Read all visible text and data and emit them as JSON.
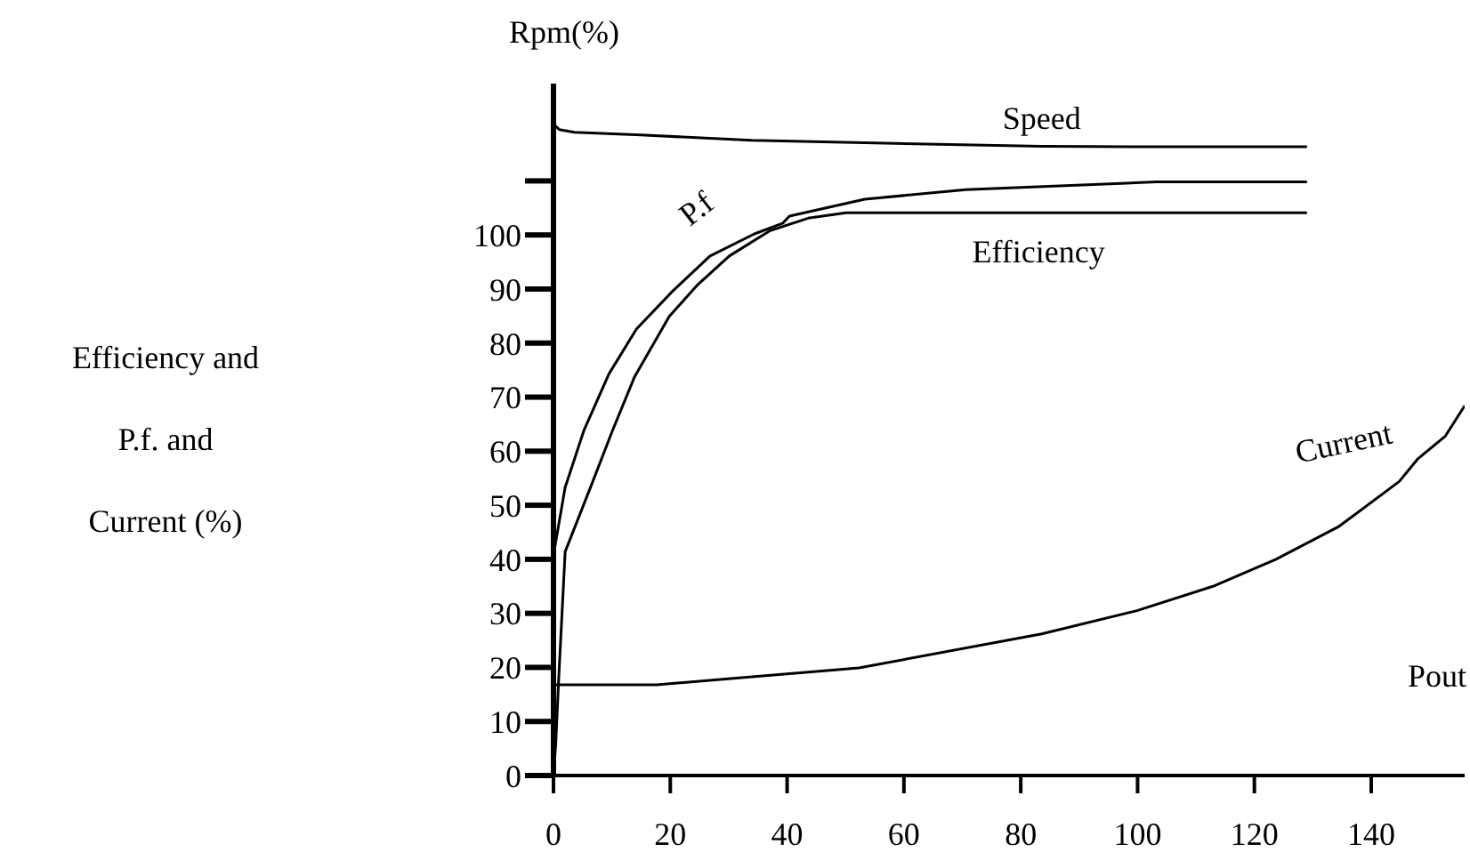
{
  "chart_data": {
    "type": "line",
    "xlabel": "Pout",
    "ylabel": "Efficiency and\nP.f. and\nCurrent (%)",
    "annotations": [
      "Rpm(%)"
    ],
    "xlim": [
      0,
      156
    ],
    "xticks": [
      0,
      20,
      40,
      60,
      80,
      100,
      120,
      140
    ],
    "ylim": [
      0,
      128
    ],
    "yticks": [
      0,
      10,
      20,
      30,
      40,
      50,
      60,
      70,
      80,
      90,
      100,
      {
        "value": 110,
        "label": null
      }
    ],
    "grid": false,
    "legend": false,
    "marker": "none",
    "line_style": "solid",
    "series": [
      {
        "name": "Speed",
        "color": "#000000",
        "x": [
          0,
          1,
          3.6,
          15,
          33.9,
          55,
          83.6,
          105,
          129
        ],
        "values": [
          120.5,
          119.5,
          119,
          118.5,
          117.5,
          117,
          116.4,
          116.3,
          116.3
        ]
      },
      {
        "name": "P.f",
        "color": "#000000",
        "x": [
          0,
          0.1,
          0.1,
          2,
          5.2,
          9.5,
          14.2,
          20.4,
          26.8,
          34.4,
          39.3,
          40.4,
          53.3,
          70.6,
          103.2,
          129
        ],
        "values": [
          0,
          18,
          41.4,
          53.3,
          63.8,
          74.3,
          82.6,
          89.6,
          96.1,
          100.2,
          102.2,
          103.5,
          106.6,
          108.4,
          109.8,
          109.8
        ]
      },
      {
        "name": "Efficiency",
        "color": "#000000",
        "x": [
          0,
          0.4,
          0.9,
          2,
          6.3,
          10.1,
          13.9,
          19.8,
          24.7,
          30.1,
          37.1,
          43.6,
          50.1,
          80,
          129
        ],
        "values": [
          0,
          6,
          18,
          41.4,
          53.2,
          63.8,
          73.8,
          84.9,
          90.8,
          96.1,
          100.8,
          103.1,
          104.1,
          104.1,
          104.1
        ]
      },
      {
        "name": "Current",
        "color": "#000000",
        "x": [
          0,
          0.2,
          17.7,
          52.3,
          83.6,
          99.9,
          112.9,
          123.7,
          134.5,
          144.8,
          148,
          152.7,
          156
        ],
        "values": [
          0,
          16.8,
          16.8,
          19.9,
          26.2,
          30.5,
          35,
          40,
          46.1,
          54.4,
          58.6,
          62.8,
          68.4
        ]
      }
    ]
  }
}
